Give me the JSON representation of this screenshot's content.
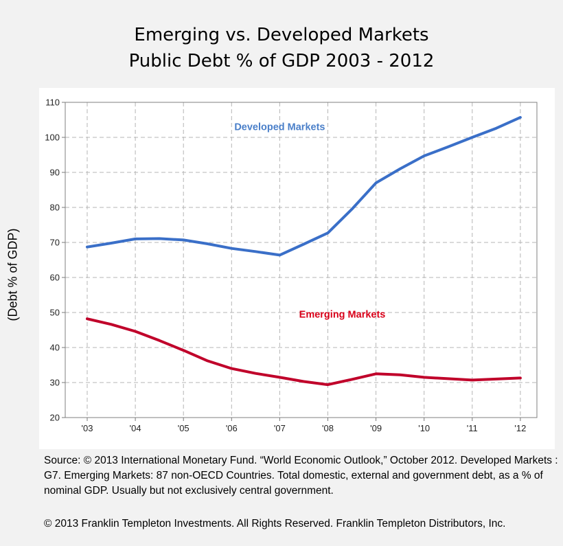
{
  "chart_data": {
    "type": "line",
    "title_line1": "Emerging vs. Developed Markets",
    "title_line2": "Public Debt % of GDP 2003 - 2012",
    "ylabel": "(Debt % of GDP)",
    "xlabel": "",
    "categories": [
      "'03",
      "'04",
      "'05",
      "'06",
      "'07",
      "'08",
      "'09",
      "'10",
      "'11",
      "'12"
    ],
    "ylim": [
      20,
      110
    ],
    "yticks": [
      20,
      30,
      40,
      50,
      60,
      70,
      80,
      90,
      100,
      110
    ],
    "grid": true,
    "series": [
      {
        "name": "Developed Markets",
        "color": "#3a6fc8",
        "label_color": "#4a7fc9",
        "label_at": [
          4.0,
          103
        ],
        "points": [
          [
            0,
            68.7
          ],
          [
            0.5,
            69.8
          ],
          [
            1,
            71.0
          ],
          [
            1.5,
            71.1
          ],
          [
            2,
            70.7
          ],
          [
            2.5,
            69.6
          ],
          [
            3,
            68.3
          ],
          [
            3.5,
            67.4
          ],
          [
            4,
            66.4
          ],
          [
            4.5,
            69.5
          ],
          [
            5,
            72.7
          ],
          [
            5.5,
            79.5
          ],
          [
            6,
            87.0
          ],
          [
            6.5,
            91.0
          ],
          [
            7,
            94.7
          ],
          [
            7.5,
            97.3
          ],
          [
            8,
            100.0
          ],
          [
            8.5,
            102.6
          ],
          [
            9,
            105.7
          ]
        ]
      },
      {
        "name": "Emerging Markets",
        "color": "#c0002a",
        "label_color": "#d90019",
        "label_at": [
          5.3,
          49.5
        ],
        "points": [
          [
            0,
            48.2
          ],
          [
            0.5,
            46.6
          ],
          [
            1,
            44.6
          ],
          [
            1.5,
            42.0
          ],
          [
            2,
            39.2
          ],
          [
            2.5,
            36.2
          ],
          [
            3,
            34.0
          ],
          [
            3.5,
            32.6
          ],
          [
            4,
            31.5
          ],
          [
            4.5,
            30.3
          ],
          [
            5,
            29.4
          ],
          [
            5.5,
            30.9
          ],
          [
            6,
            32.5
          ],
          [
            6.5,
            32.2
          ],
          [
            7,
            31.5
          ],
          [
            7.5,
            31.1
          ],
          [
            8,
            30.7
          ],
          [
            8.5,
            31.0
          ],
          [
            9,
            31.3
          ]
        ]
      }
    ]
  },
  "source_text": "Source: © 2013 International Monetary Fund. “World Economic Outlook,” October 2012. Developed Markets : G7. Emerging Markets: 87 non-OECD Countries. Total domestic, external and government debt, as a % of nominal GDP. Usually but not exclusively central government.",
  "copyright_text": "© 2013 Franklin Templeton Investments. All Rights Reserved.  Franklin Templeton Distributors, Inc."
}
